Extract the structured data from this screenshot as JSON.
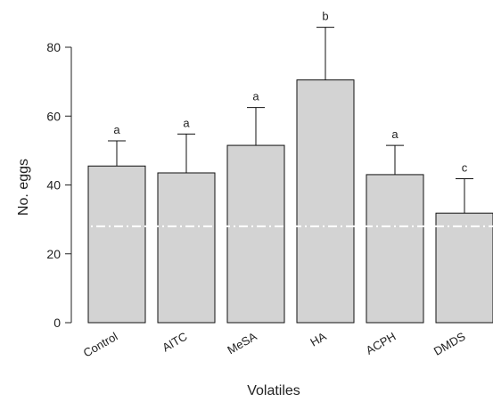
{
  "chart_data": {
    "type": "bar",
    "title": "",
    "xlabel": "Volatiles",
    "ylabel": "No. eggs",
    "categories": [
      "Control",
      "AITC",
      "MeSA",
      "HA",
      "ACPH",
      "DMDS"
    ],
    "values": [
      45.5,
      43.5,
      51.5,
      70.5,
      43.0,
      31.8
    ],
    "error_upper": [
      52.8,
      54.8,
      62.5,
      85.8,
      51.5,
      41.8
    ],
    "significance": [
      "a",
      "a",
      "a",
      "b",
      "a",
      "c"
    ],
    "reference_line": 28,
    "ylim": [
      0,
      85
    ],
    "yticks": [
      0,
      20,
      40,
      60,
      80
    ],
    "grid": false,
    "colors": {
      "bar_fill": "#d3d3d3",
      "bar_stroke": "#111111",
      "reference_line": "#ffffff"
    }
  }
}
